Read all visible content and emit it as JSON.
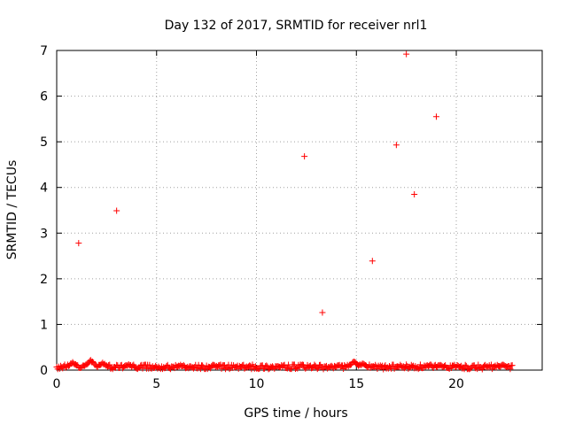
{
  "chart_data": {
    "type": "scatter",
    "title": "Day 132 of 2017, SRMTID for receiver nrl1",
    "xlabel": "GPS time / hours",
    "ylabel": "SRMTID / TECUs",
    "xlim": [
      0,
      24.3
    ],
    "ylim": [
      0,
      7
    ],
    "xticks": [
      0,
      5,
      10,
      15,
      20
    ],
    "yticks": [
      0,
      1,
      2,
      3,
      4,
      5,
      6,
      7
    ],
    "grid": true,
    "marker": "+",
    "color": "#ff0000",
    "series": [
      {
        "name": "SRMTID",
        "outliers": [
          {
            "x": 1.1,
            "y": 2.78
          },
          {
            "x": 3.0,
            "y": 3.49
          },
          {
            "x": 12.4,
            "y": 4.68
          },
          {
            "x": 13.3,
            "y": 1.26
          },
          {
            "x": 15.8,
            "y": 2.39
          },
          {
            "x": 17.0,
            "y": 4.93
          },
          {
            "x": 17.5,
            "y": 6.92
          },
          {
            "x": 17.9,
            "y": 3.85
          },
          {
            "x": 19.0,
            "y": 5.55
          }
        ],
        "baseline": {
          "x_start": 0.0,
          "x_end": 22.8,
          "step": 0.05,
          "typical_range": [
            0.02,
            0.12
          ],
          "bumps": [
            {
              "x": 0.8,
              "y": 0.15
            },
            {
              "x": 1.7,
              "y": 0.2
            },
            {
              "x": 2.3,
              "y": 0.14
            },
            {
              "x": 3.6,
              "y": 0.1
            },
            {
              "x": 6.2,
              "y": 0.09
            },
            {
              "x": 14.9,
              "y": 0.17
            },
            {
              "x": 15.3,
              "y": 0.12
            },
            {
              "x": 19.2,
              "y": 0.1
            },
            {
              "x": 22.3,
              "y": 0.1
            }
          ]
        }
      }
    ]
  }
}
